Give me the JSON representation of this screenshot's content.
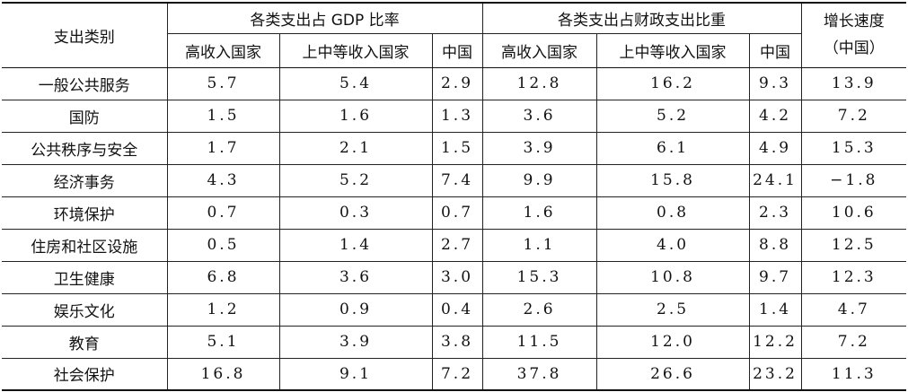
{
  "headers": {
    "category": "支出类别",
    "gdp_group": "各类支出占 GDP 比率",
    "fiscal_group": "各类支出占财政支出比重",
    "growth_line1": "增长速度",
    "growth_line2": "（中国）",
    "gdp_sub": [
      "高收入国家",
      "上中等收入国家",
      "中国"
    ],
    "fiscal_sub": [
      "高收入国家",
      "上中等收入国家",
      "中国"
    ]
  },
  "rows": [
    {
      "category": "一般公共服务",
      "values": [
        "5.7",
        "5.4",
        "2.9",
        "12.8",
        "16.2",
        "9.3",
        "13.9"
      ]
    },
    {
      "category": "国防",
      "values": [
        "1.5",
        "1.6",
        "1.3",
        "3.6",
        "5.2",
        "4.2",
        "7.2"
      ]
    },
    {
      "category": "公共秩序与安全",
      "values": [
        "1.7",
        "2.1",
        "1.5",
        "3.9",
        "6.1",
        "4.9",
        "15.3"
      ]
    },
    {
      "category": "经济事务",
      "values": [
        "4.3",
        "5.2",
        "7.4",
        "9.9",
        "15.8",
        "24.1",
        "−1.8"
      ]
    },
    {
      "category": "环境保护",
      "values": [
        "0.7",
        "0.3",
        "0.7",
        "1.6",
        "0.8",
        "2.3",
        "10.6"
      ]
    },
    {
      "category": "住房和社区设施",
      "values": [
        "0.5",
        "1.4",
        "2.7",
        "1.1",
        "4.0",
        "8.8",
        "12.5"
      ]
    },
    {
      "category": "卫生健康",
      "values": [
        "6.8",
        "3.6",
        "3.0",
        "15.3",
        "10.8",
        "9.7",
        "12.3"
      ]
    },
    {
      "category": "娱乐文化",
      "values": [
        "1.2",
        "0.9",
        "0.4",
        "2.6",
        "2.5",
        "1.4",
        "4.7"
      ]
    },
    {
      "category": "教育",
      "values": [
        "5.1",
        "3.9",
        "3.8",
        "11.5",
        "12.0",
        "12.2",
        "7.2"
      ]
    },
    {
      "category": "社会保护",
      "values": [
        "16.8",
        "9.1",
        "7.2",
        "37.8",
        "26.6",
        "23.2",
        "11.3"
      ]
    }
  ]
}
